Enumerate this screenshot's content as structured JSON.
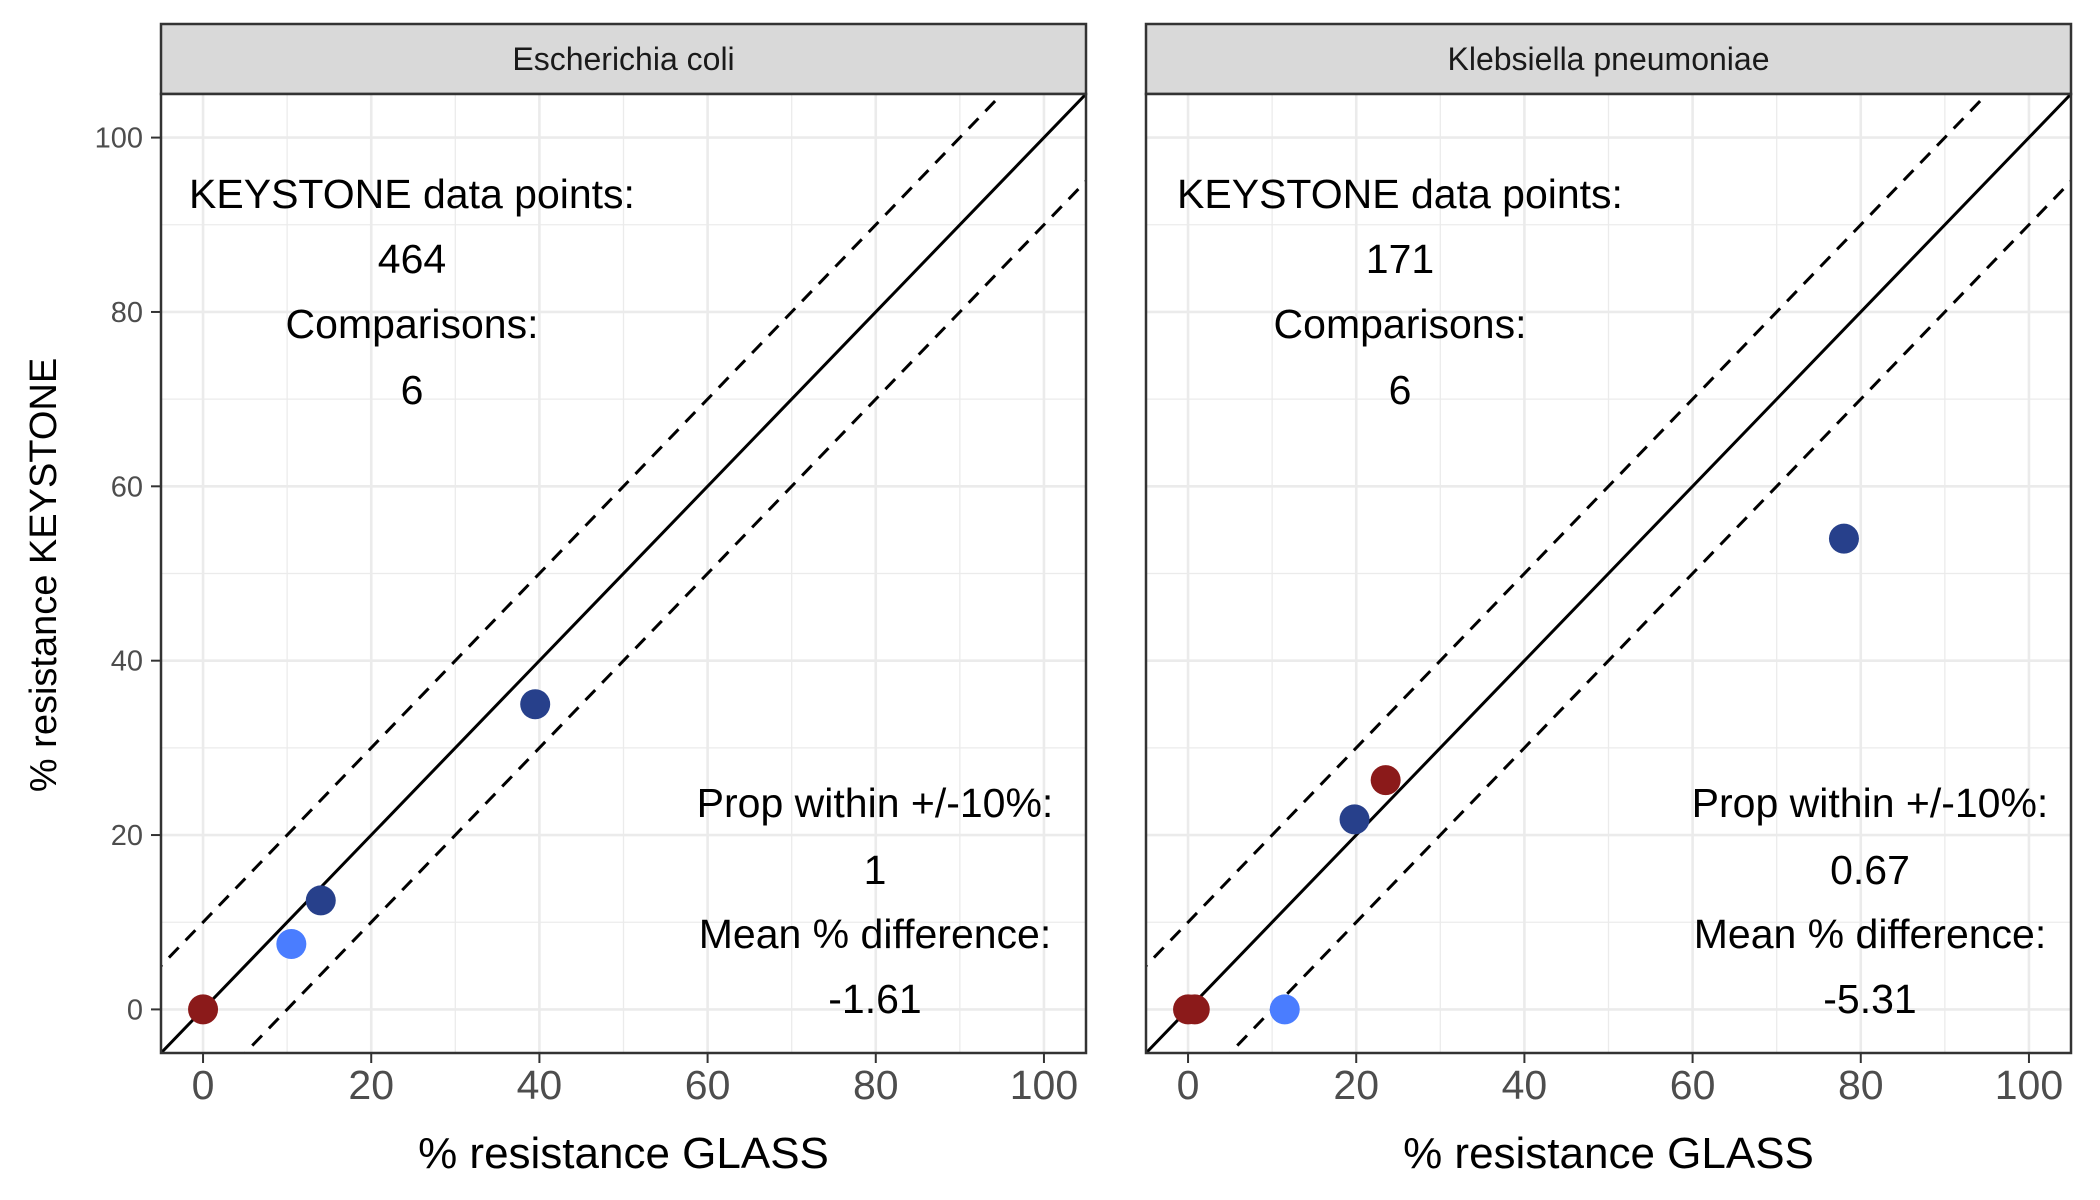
{
  "colors": {
    "strip_fill": "#d9d9d9",
    "panel_border": "#333333",
    "grid": "#ebebeb",
    "identity_line": "#000000",
    "band_line": "#000000",
    "dark_red": "#8b1a1a",
    "navy": "#27408b",
    "light_blue": "#4a7dff"
  },
  "axis_labels": {
    "x": "% resistance GLASS",
    "y": "% resistance KEYSTONE"
  },
  "chart_data": [
    {
      "type": "scatter",
      "facet": "Escherichia coli",
      "xlabel": "% resistance GLASS",
      "ylabel": "% resistance KEYSTONE",
      "xlim": [
        -5,
        105
      ],
      "ylim": [
        -5,
        105
      ],
      "x_ticks": [
        0,
        20,
        40,
        60,
        80,
        100
      ],
      "y_ticks": [
        0,
        20,
        40,
        60,
        80,
        100
      ],
      "grid": true,
      "reference_lines": {
        "identity": "y = x",
        "band": "+/-10"
      },
      "points": [
        {
          "x": 0,
          "y": 0,
          "color": "dark_red"
        },
        {
          "x": 10.5,
          "y": 7.5,
          "color": "light_blue"
        },
        {
          "x": 14,
          "y": 12.5,
          "color": "navy"
        },
        {
          "x": 39.5,
          "y": 35,
          "color": "navy"
        }
      ],
      "annotations": {
        "data_points_label": "KEYSTONE data points:",
        "data_points_value": "464",
        "comparisons_label": "Comparisons:",
        "comparisons_value": "6",
        "prop_label": "Prop within +/-10%:",
        "prop_value": "1",
        "mean_label": "Mean % difference:",
        "mean_value": "-1.61"
      }
    },
    {
      "type": "scatter",
      "facet": "Klebsiella pneumoniae",
      "xlabel": "% resistance GLASS",
      "ylabel": "% resistance KEYSTONE",
      "xlim": [
        -5,
        105
      ],
      "ylim": [
        -5,
        105
      ],
      "x_ticks": [
        0,
        20,
        40,
        60,
        80,
        100
      ],
      "y_ticks": [
        0,
        20,
        40,
        60,
        80,
        100
      ],
      "grid": true,
      "reference_lines": {
        "identity": "y = x",
        "band": "+/-10"
      },
      "points": [
        {
          "x": 0,
          "y": 0,
          "color": "dark_red"
        },
        {
          "x": 0.8,
          "y": 0,
          "color": "dark_red"
        },
        {
          "x": 11.5,
          "y": 0,
          "color": "light_blue"
        },
        {
          "x": 19.8,
          "y": 21.8,
          "color": "navy"
        },
        {
          "x": 23.5,
          "y": 26.3,
          "color": "dark_red"
        },
        {
          "x": 78,
          "y": 54,
          "color": "navy"
        }
      ],
      "annotations": {
        "data_points_label": "KEYSTONE data points:",
        "data_points_value": "171",
        "comparisons_label": "Comparisons:",
        "comparisons_value": "6",
        "prop_label": "Prop within +/-10%:",
        "prop_value": "0.67",
        "mean_label": "Mean % difference:",
        "mean_value": "-5.31"
      }
    }
  ]
}
